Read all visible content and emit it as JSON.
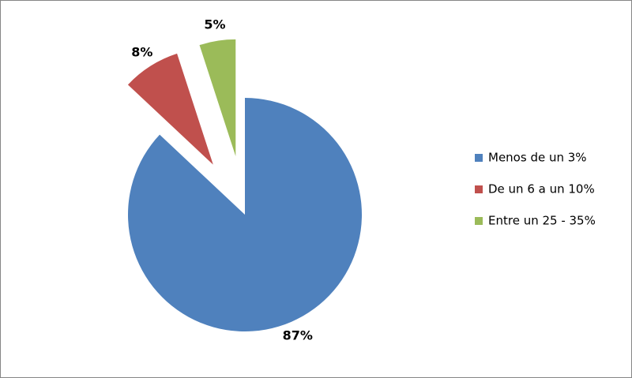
{
  "chart_data": {
    "type": "pie",
    "categories": [
      "Menos de un 3%",
      "De un 6 a un 10%",
      "Entre un 25 - 35%"
    ],
    "values": [
      87,
      8,
      5
    ],
    "value_labels": [
      "87%",
      "8%",
      "5%"
    ],
    "colors": [
      "#4f81bd",
      "#c0504d",
      "#9bbb59"
    ],
    "exploded": [
      false,
      true,
      true
    ],
    "legend": "right"
  }
}
